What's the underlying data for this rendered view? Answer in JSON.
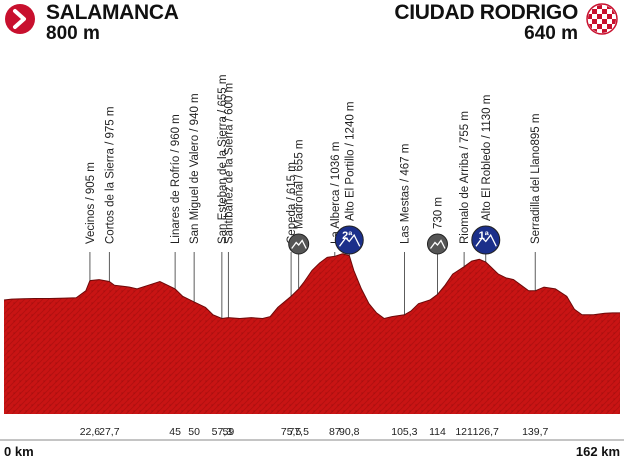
{
  "header": {
    "start": {
      "city": "SALAMANCA",
      "altitude": "800 m"
    },
    "finish": {
      "city": "CIUDAD RODRIGO",
      "altitude": "640 m"
    },
    "colors": {
      "start_arrow": "#c8102e",
      "finish_flag_a": "#c8102e",
      "finish_flag_b": "#ffffff"
    }
  },
  "chart_data": {
    "type": "area",
    "xlabel": "",
    "ylabel": "",
    "xlim": [
      0,
      162
    ],
    "ylim": [
      300,
      1300
    ],
    "x_axis_end_labels": [
      "0 km",
      "162 km"
    ],
    "grid": false,
    "colors": {
      "fill": "#c81414",
      "fill_dark": "#a50d0d",
      "outline": "#6e0909"
    },
    "profile": [
      [
        0,
        800
      ],
      [
        2,
        805
      ],
      [
        5,
        807
      ],
      [
        8,
        808
      ],
      [
        12,
        808
      ],
      [
        16,
        810
      ],
      [
        19,
        812
      ],
      [
        21.5,
        850
      ],
      [
        22.6,
        905
      ],
      [
        25,
        910
      ],
      [
        27.7,
        900
      ],
      [
        29,
        880
      ],
      [
        31,
        875
      ],
      [
        33,
        870
      ],
      [
        35,
        860
      ],
      [
        38,
        880
      ],
      [
        41,
        900
      ],
      [
        43,
        880
      ],
      [
        45,
        860
      ],
      [
        47,
        820
      ],
      [
        50,
        790
      ],
      [
        53,
        760
      ],
      [
        55,
        720
      ],
      [
        57.3,
        700
      ],
      [
        59,
        705
      ],
      [
        62,
        700
      ],
      [
        65,
        705
      ],
      [
        68,
        700
      ],
      [
        70,
        710
      ],
      [
        72,
        760
      ],
      [
        75.5,
        820
      ],
      [
        77.5,
        860
      ],
      [
        79,
        900
      ],
      [
        81,
        960
      ],
      [
        83,
        1000
      ],
      [
        85,
        1030
      ],
      [
        87,
        1036
      ],
      [
        89,
        1050
      ],
      [
        90.8,
        1040
      ],
      [
        92,
        960
      ],
      [
        94,
        860
      ],
      [
        96,
        780
      ],
      [
        98,
        730
      ],
      [
        100,
        700
      ],
      [
        102,
        710
      ],
      [
        105.3,
        720
      ],
      [
        107,
        740
      ],
      [
        109,
        780
      ],
      [
        112,
        800
      ],
      [
        114,
        830
      ],
      [
        116,
        880
      ],
      [
        118,
        940
      ],
      [
        121,
        980
      ],
      [
        123,
        1010
      ],
      [
        125,
        1020
      ],
      [
        126.7,
        1005
      ],
      [
        128,
        980
      ],
      [
        130,
        940
      ],
      [
        132,
        920
      ],
      [
        134,
        910
      ],
      [
        136,
        880
      ],
      [
        138,
        850
      ],
      [
        139.7,
        850
      ],
      [
        142,
        870
      ],
      [
        145,
        860
      ],
      [
        148,
        820
      ],
      [
        150,
        750
      ],
      [
        152,
        720
      ],
      [
        155,
        720
      ],
      [
        158,
        728
      ],
      [
        160,
        730
      ],
      [
        162,
        730
      ]
    ],
    "waypoints": [
      {
        "km": 22.6,
        "km_label": "22,6",
        "name": "Vecinos / 905 m",
        "altitude": 905
      },
      {
        "km": 27.7,
        "km_label": "27,7",
        "name": "Cortos de la Sierra / 975 m",
        "altitude": 975
      },
      {
        "km": 45,
        "km_label": "45",
        "name": "Linares de Rofrío / 960 m",
        "altitude": 960
      },
      {
        "km": 50,
        "km_label": "50",
        "name": "San Miguel de Valero / 940 m",
        "altitude": 940
      },
      {
        "km": 57.3,
        "km_label": "57,3",
        "name": "San Esteban de la Sierra / 655 m",
        "altitude": 655
      },
      {
        "km": 59,
        "km_label": "59",
        "name": "Santibáñez de la Sierra / 600 m",
        "altitude": 600
      },
      {
        "km": 75.5,
        "km_label": "75,5",
        "name": "Cepeda / 615 m",
        "altitude": 615
      },
      {
        "km": 77.5,
        "km_label": "77,5",
        "name": "Madroñal / 655 m",
        "altitude": 655,
        "badge": "sprint"
      },
      {
        "km": 87,
        "km_label": "87",
        "name": "La Alberca / 1036 m",
        "altitude": 1036
      },
      {
        "km": 90.8,
        "km_label": "90,8",
        "name": "Alto El Portillo / 1240 m",
        "altitude": 1240,
        "badge": "2ª"
      },
      {
        "km": 105.3,
        "km_label": "105,3",
        "name": "Las Mestas / 467 m",
        "altitude": 467
      },
      {
        "km": 114,
        "km_label": "114",
        "name": "730 m",
        "altitude": 730,
        "badge": "sprint"
      },
      {
        "km": 121,
        "km_label": "121",
        "name": "Riomalo de Arriba / 755 m",
        "altitude": 755
      },
      {
        "km": 126.7,
        "km_label": "126,7",
        "name": "Alto El Robledo / 1130 m",
        "altitude": 1130,
        "badge": "1ª"
      },
      {
        "km": 139.7,
        "km_label": "139,7",
        "name": "Serradilla del Llano895 m",
        "altitude": 895
      }
    ]
  }
}
